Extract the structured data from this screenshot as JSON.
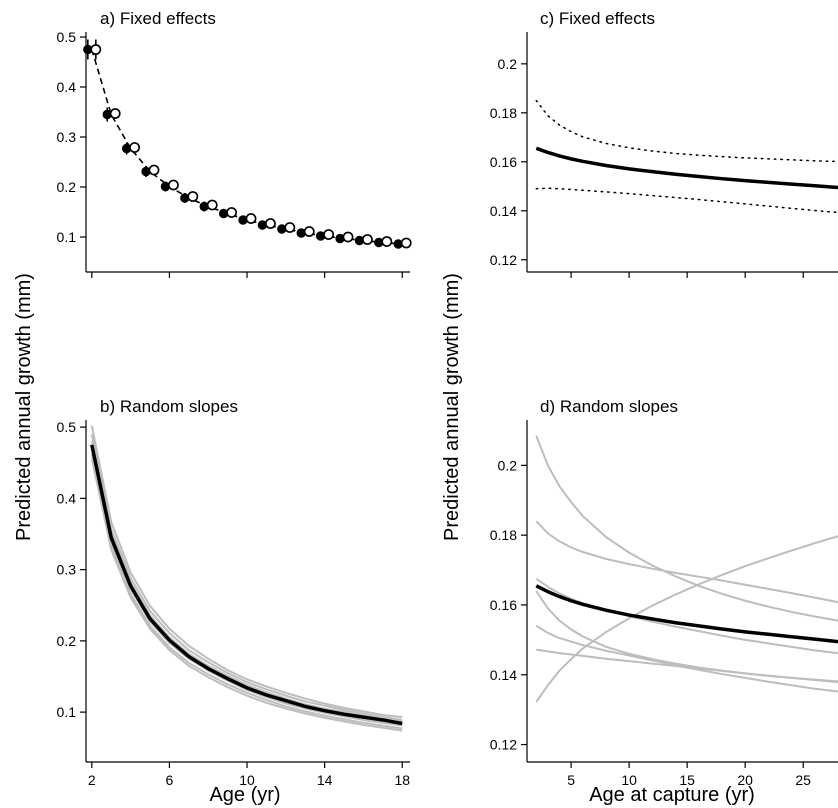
{
  "figure": {
    "left_ylabel": "Predicted annual growth (mm)",
    "right_ylabel": "Predicted annual growth (mm)",
    "left_xlabel": "Age (yr)",
    "right_xlabel": "Age at capture (yr)"
  },
  "chart_data": [
    {
      "id": "a",
      "type": "line",
      "title": "a) Fixed effects",
      "xlim": [
        1.7,
        18.4
      ],
      "ylim": [
        0.03,
        0.51
      ],
      "xticks": [
        2,
        6,
        10,
        14,
        18
      ],
      "yticks": [
        0.1,
        0.2,
        0.3,
        0.4,
        0.5
      ],
      "line_color": "#000000",
      "line_style": "dashed",
      "x": [
        2,
        3,
        4,
        5,
        6,
        7,
        8,
        9,
        10,
        11,
        12,
        13,
        14,
        15,
        16,
        17,
        18
      ],
      "series": [
        {
          "marker": "filled",
          "y": [
            0.475,
            0.345,
            0.277,
            0.231,
            0.201,
            0.178,
            0.161,
            0.147,
            0.134,
            0.124,
            0.116,
            0.108,
            0.102,
            0.097,
            0.093,
            0.089,
            0.086
          ],
          "err": [
            0.02,
            0.014,
            0.012,
            0.011,
            0.01,
            0.01,
            0.01,
            0.009,
            0.009,
            0.009,
            0.009,
            0.009,
            0.009,
            0.009,
            0.009,
            0.009,
            0.009
          ]
        },
        {
          "marker": "open",
          "y": [
            0.475,
            0.347,
            0.279,
            0.234,
            0.204,
            0.181,
            0.164,
            0.149,
            0.137,
            0.127,
            0.119,
            0.111,
            0.105,
            0.1,
            0.095,
            0.091,
            0.088
          ],
          "err": [
            0.02,
            0.01,
            0.008,
            0.007,
            0.007,
            0.007,
            0.007,
            0.006,
            0.006,
            0.006,
            0.006,
            0.006,
            0.006,
            0.006,
            0.006,
            0.006,
            0.006
          ]
        }
      ]
    },
    {
      "id": "b",
      "type": "line",
      "title": "b) Random slopes",
      "xlim": [
        1.7,
        18.4
      ],
      "ylim": [
        0.03,
        0.51
      ],
      "xticks": [
        2,
        6,
        10,
        14,
        18
      ],
      "yticks": [
        0.1,
        0.2,
        0.3,
        0.4,
        0.5
      ],
      "mean_color": "#000000",
      "random_color": "#bdbdbd",
      "x": [
        2,
        3,
        4,
        5,
        6,
        7,
        8,
        9,
        10,
        11,
        12,
        13,
        14,
        15,
        16,
        17,
        18
      ],
      "mean": [
        0.475,
        0.345,
        0.277,
        0.231,
        0.201,
        0.178,
        0.161,
        0.147,
        0.134,
        0.124,
        0.116,
        0.108,
        0.102,
        0.097,
        0.093,
        0.089,
        0.084
      ],
      "random": [
        [
          0.502,
          0.367,
          0.296,
          0.249,
          0.217,
          0.193,
          0.175,
          0.159,
          0.146,
          0.136,
          0.127,
          0.119,
          0.112,
          0.106,
          0.101,
          0.096,
          0.093
        ],
        [
          0.49,
          0.357,
          0.288,
          0.242,
          0.211,
          0.187,
          0.17,
          0.155,
          0.142,
          0.132,
          0.123,
          0.115,
          0.109,
          0.103,
          0.098,
          0.093,
          0.089
        ],
        [
          0.48,
          0.35,
          0.282,
          0.236,
          0.205,
          0.182,
          0.165,
          0.151,
          0.138,
          0.128,
          0.119,
          0.111,
          0.105,
          0.1,
          0.095,
          0.09,
          0.086
        ],
        [
          0.47,
          0.34,
          0.273,
          0.227,
          0.197,
          0.175,
          0.158,
          0.144,
          0.131,
          0.121,
          0.112,
          0.105,
          0.099,
          0.094,
          0.089,
          0.085,
          0.081
        ],
        [
          0.462,
          0.333,
          0.266,
          0.221,
          0.191,
          0.169,
          0.153,
          0.139,
          0.127,
          0.117,
          0.108,
          0.101,
          0.095,
          0.09,
          0.085,
          0.081,
          0.077
        ],
        [
          0.456,
          0.328,
          0.261,
          0.217,
          0.187,
          0.165,
          0.149,
          0.135,
          0.123,
          0.113,
          0.105,
          0.098,
          0.092,
          0.087,
          0.082,
          0.078,
          0.074
        ]
      ]
    },
    {
      "id": "c",
      "type": "line",
      "title": "c) Fixed effects",
      "xlim": [
        1.2,
        28.0
      ],
      "ylim": [
        0.115,
        0.213
      ],
      "xticks": [
        5,
        10,
        15,
        20,
        25
      ],
      "show_xtick_labels": false,
      "yticks": [
        0.12,
        0.14,
        0.16,
        0.18,
        0.2
      ],
      "x": [
        2,
        3,
        4,
        5,
        6,
        8,
        10,
        12,
        14,
        16,
        18,
        20,
        22,
        24,
        26,
        28
      ],
      "mean": [
        0.1655,
        0.1638,
        0.1624,
        0.1612,
        0.1602,
        0.1585,
        0.1571,
        0.156,
        0.1549,
        0.154,
        0.1531,
        0.1523,
        0.1516,
        0.1509,
        0.1502,
        0.1495
      ],
      "upper": [
        0.185,
        0.1788,
        0.175,
        0.1723,
        0.1702,
        0.1675,
        0.1657,
        0.1644,
        0.1634,
        0.1627,
        0.1621,
        0.1616,
        0.1612,
        0.1608,
        0.1604,
        0.1601
      ],
      "lower": [
        0.149,
        0.1492,
        0.149,
        0.1487,
        0.1484,
        0.1477,
        0.147,
        0.1462,
        0.1454,
        0.1446,
        0.1437,
        0.1428,
        0.1419,
        0.141,
        0.1401,
        0.1393
      ],
      "mean_color": "#000000",
      "ci_style": "dotted"
    },
    {
      "id": "d",
      "type": "line",
      "title": "d) Random slopes",
      "xlim": [
        1.2,
        28.0
      ],
      "ylim": [
        0.115,
        0.213
      ],
      "xticks": [
        5,
        10,
        15,
        20,
        25
      ],
      "yticks": [
        0.12,
        0.14,
        0.16,
        0.18,
        0.2
      ],
      "x": [
        2,
        3,
        4,
        5,
        6,
        8,
        10,
        12,
        14,
        16,
        18,
        20,
        22,
        24,
        26,
        28
      ],
      "mean": [
        0.1655,
        0.1638,
        0.1624,
        0.1612,
        0.1602,
        0.1585,
        0.1571,
        0.156,
        0.1549,
        0.154,
        0.1531,
        0.1523,
        0.1516,
        0.1509,
        0.1502,
        0.1495
      ],
      "mean_color": "#000000",
      "random_color": "#bdbdbd",
      "random": [
        [
          0.2085,
          0.2,
          0.194,
          0.1895,
          0.1855,
          0.1795,
          0.175,
          0.1713,
          0.1682,
          0.1655,
          0.1632,
          0.1612,
          0.1595,
          0.158,
          0.1567,
          0.1555
        ],
        [
          0.184,
          0.1805,
          0.1782,
          0.1765,
          0.1752,
          0.1732,
          0.1717,
          0.1704,
          0.1692,
          0.1681,
          0.167,
          0.1658,
          0.1646,
          0.1634,
          0.1621,
          0.1608
        ],
        [
          0.1675,
          0.1652,
          0.1633,
          0.1618,
          0.1605,
          0.1585,
          0.1568,
          0.1552,
          0.1538,
          0.1525,
          0.1512,
          0.15,
          0.149,
          0.148,
          0.147,
          0.1462
        ],
        [
          0.164,
          0.159,
          0.1555,
          0.153,
          0.151,
          0.148,
          0.146,
          0.1445,
          0.1432,
          0.1421,
          0.1412,
          0.1404,
          0.1397,
          0.1391,
          0.1386,
          0.1381
        ],
        [
          0.154,
          0.152,
          0.1505,
          0.1495,
          0.1485,
          0.1469,
          0.1455,
          0.1441,
          0.1427,
          0.1414,
          0.1402,
          0.1391,
          0.138,
          0.137,
          0.136,
          0.1352
        ],
        [
          0.1472,
          0.1467,
          0.1462,
          0.1458,
          0.1454,
          0.1446,
          0.1439,
          0.1432,
          0.1425,
          0.1418,
          0.1411,
          0.1404,
          0.1397,
          0.1391,
          0.1385,
          0.1379
        ],
        [
          0.1322,
          0.137,
          0.1412,
          0.1445,
          0.1475,
          0.1522,
          0.1562,
          0.1598,
          0.163,
          0.1659,
          0.1686,
          0.1711,
          0.1734,
          0.1756,
          0.1777,
          0.1797
        ]
      ]
    }
  ]
}
